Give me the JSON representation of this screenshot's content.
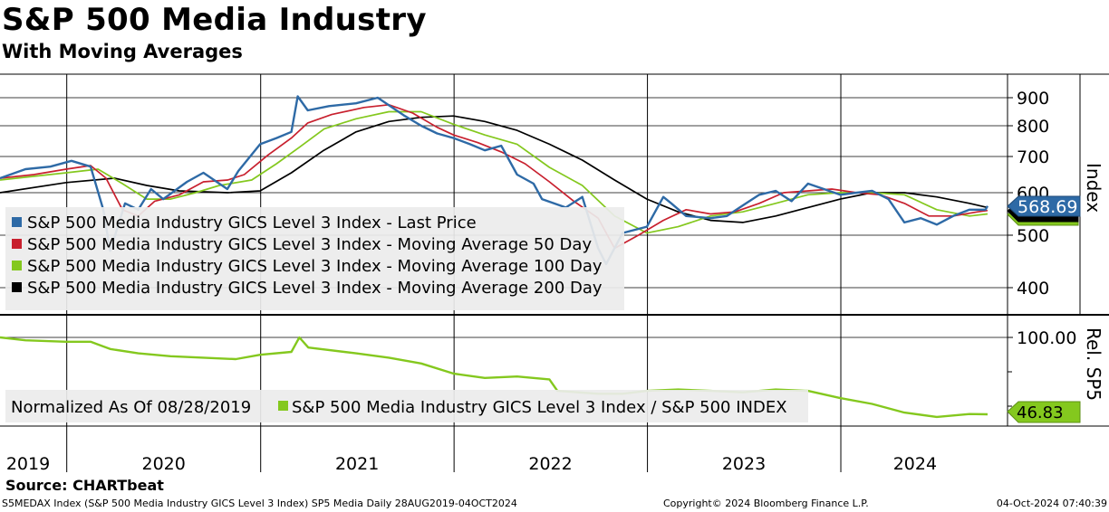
{
  "title": "S&P 500 Media Industry",
  "subtitle": "With Moving Averages",
  "source": "Source:  CHARTbeat",
  "footer": {
    "left": "S5MEDAX Index (S&P 500 Media Industry GICS Level 3 Index) SP5 Media  Daily 28AUG2019-04OCT2024",
    "center": "Copyright© 2024 Bloomberg Finance L.P.",
    "right": "04-Oct-2024 07:40:39"
  },
  "colors": {
    "last_price": "#2e6aa6",
    "ma50": "#c8202e",
    "ma100": "#84c81e",
    "ma200": "#000000",
    "relative": "#84c81e"
  },
  "chart_data": [
    {
      "type": "line",
      "panel": "upper",
      "axis_label": "Index",
      "y_ticks": [
        400,
        500,
        600,
        700,
        800,
        900
      ],
      "ylim": [
        360,
        940
      ],
      "x_labels": [
        "2019",
        "2020",
        "2021",
        "2022",
        "2023",
        "2024"
      ],
      "last_value_label": "568.69",
      "legend_placement": "bottom-left",
      "grid": true,
      "series": [
        {
          "name": "S&P 500 Media Industry GICS Level 3 Index - Last Price",
          "color": "#2e6aa6",
          "points": [
            [
              "2019-08-28",
              640
            ],
            [
              "2019-10-15",
              665
            ],
            [
              "2019-12-01",
              672
            ],
            [
              "2020-01-10",
              688
            ],
            [
              "2020-02-15",
              672
            ],
            [
              "2020-03-10",
              560
            ],
            [
              "2020-03-23",
              470
            ],
            [
              "2020-04-20",
              575
            ],
            [
              "2020-05-15",
              560
            ],
            [
              "2020-06-08",
              610
            ],
            [
              "2020-07-01",
              585
            ],
            [
              "2020-08-15",
              630
            ],
            [
              "2020-09-15",
              655
            ],
            [
              "2020-10-30",
              610
            ],
            [
              "2020-11-20",
              660
            ],
            [
              "2020-12-31",
              740
            ],
            [
              "2021-01-31",
              760
            ],
            [
              "2021-02-28",
              780
            ],
            [
              "2021-03-12",
              905
            ],
            [
              "2021-03-31",
              855
            ],
            [
              "2021-05-10",
              870
            ],
            [
              "2021-06-30",
              880
            ],
            [
              "2021-08-10",
              900
            ],
            [
              "2021-09-30",
              835
            ],
            [
              "2021-10-31",
              800
            ],
            [
              "2021-11-30",
              775
            ],
            [
              "2021-12-31",
              760
            ],
            [
              "2022-01-31",
              740
            ],
            [
              "2022-02-28",
              720
            ],
            [
              "2022-03-31",
              735
            ],
            [
              "2022-04-30",
              650
            ],
            [
              "2022-05-31",
              625
            ],
            [
              "2022-06-16",
              585
            ],
            [
              "2022-07-31",
              565
            ],
            [
              "2022-08-31",
              590
            ],
            [
              "2022-09-30",
              475
            ],
            [
              "2022-10-15",
              445
            ],
            [
              "2022-11-15",
              505
            ],
            [
              "2022-12-31",
              520
            ],
            [
              "2023-01-31",
              590
            ],
            [
              "2023-02-15",
              575
            ],
            [
              "2023-03-15",
              545
            ],
            [
              "2023-04-30",
              540
            ],
            [
              "2023-05-31",
              545
            ],
            [
              "2023-06-30",
              570
            ],
            [
              "2023-07-31",
              595
            ],
            [
              "2023-08-31",
              605
            ],
            [
              "2023-09-30",
              580
            ],
            [
              "2023-10-31",
              625
            ],
            [
              "2023-11-30",
              610
            ],
            [
              "2023-12-31",
              595
            ],
            [
              "2024-01-31",
              600
            ],
            [
              "2024-02-29",
              605
            ],
            [
              "2024-03-31",
              585
            ],
            [
              "2024-04-30",
              530
            ],
            [
              "2024-05-31",
              540
            ],
            [
              "2024-06-30",
              525
            ],
            [
              "2024-07-31",
              545
            ],
            [
              "2024-08-31",
              560
            ],
            [
              "2024-09-30",
              560
            ],
            [
              "2024-10-04",
              568.69
            ]
          ]
        },
        {
          "name": "S&P 500 Media Industry GICS Level 3 Index - Moving Average 50 Day",
          "color": "#c8202e",
          "points": [
            [
              "2019-08-28",
              640
            ],
            [
              "2019-10-31",
              650
            ],
            [
              "2019-12-31",
              665
            ],
            [
              "2020-02-15",
              675
            ],
            [
              "2020-03-15",
              640
            ],
            [
              "2020-04-15",
              560
            ],
            [
              "2020-05-15",
              545
            ],
            [
              "2020-06-15",
              580
            ],
            [
              "2020-08-01",
              595
            ],
            [
              "2020-09-15",
              630
            ],
            [
              "2020-10-31",
              635
            ],
            [
              "2020-12-01",
              650
            ],
            [
              "2021-01-15",
              705
            ],
            [
              "2021-02-28",
              760
            ],
            [
              "2021-03-31",
              810
            ],
            [
              "2021-05-15",
              840
            ],
            [
              "2021-07-15",
              865
            ],
            [
              "2021-08-31",
              875
            ],
            [
              "2021-10-15",
              845
            ],
            [
              "2021-11-30",
              795
            ],
            [
              "2021-12-31",
              770
            ],
            [
              "2022-02-15",
              745
            ],
            [
              "2022-03-31",
              715
            ],
            [
              "2022-05-15",
              680
            ],
            [
              "2022-06-30",
              630
            ],
            [
              "2022-08-15",
              580
            ],
            [
              "2022-09-30",
              540
            ],
            [
              "2022-10-31",
              475
            ],
            [
              "2022-12-15",
              500
            ],
            [
              "2023-01-31",
              535
            ],
            [
              "2023-03-15",
              560
            ],
            [
              "2023-04-30",
              550
            ],
            [
              "2023-06-15",
              555
            ],
            [
              "2023-07-31",
              575
            ],
            [
              "2023-09-15",
              600
            ],
            [
              "2023-10-31",
              605
            ],
            [
              "2023-12-15",
              610
            ],
            [
              "2024-01-31",
              600
            ],
            [
              "2024-03-15",
              595
            ],
            [
              "2024-04-30",
              575
            ],
            [
              "2024-06-15",
              545
            ],
            [
              "2024-07-31",
              545
            ],
            [
              "2024-09-15",
              555
            ],
            [
              "2024-10-04",
              558
            ]
          ]
        },
        {
          "name": "S&P 500 Media Industry GICS Level 3 Index - Moving Average 100 Day",
          "color": "#84c81e",
          "points": [
            [
              "2019-08-28",
              635
            ],
            [
              "2019-12-31",
              655
            ],
            [
              "2020-02-29",
              665
            ],
            [
              "2020-04-15",
              625
            ],
            [
              "2020-05-31",
              585
            ],
            [
              "2020-07-15",
              585
            ],
            [
              "2020-08-31",
              600
            ],
            [
              "2020-10-15",
              620
            ],
            [
              "2020-12-15",
              635
            ],
            [
              "2021-01-31",
              680
            ],
            [
              "2021-03-15",
              730
            ],
            [
              "2021-05-01",
              790
            ],
            [
              "2021-06-30",
              825
            ],
            [
              "2021-08-31",
              850
            ],
            [
              "2021-10-31",
              850
            ],
            [
              "2021-12-31",
              805
            ],
            [
              "2022-02-28",
              770
            ],
            [
              "2022-04-30",
              740
            ],
            [
              "2022-06-30",
              670
            ],
            [
              "2022-08-31",
              620
            ],
            [
              "2022-10-31",
              545
            ],
            [
              "2022-12-31",
              505
            ],
            [
              "2023-02-28",
              520
            ],
            [
              "2023-04-30",
              545
            ],
            [
              "2023-06-30",
              555
            ],
            [
              "2023-08-31",
              575
            ],
            [
              "2023-10-31",
              595
            ],
            [
              "2023-12-31",
              600
            ],
            [
              "2024-02-29",
              600
            ],
            [
              "2024-04-30",
              595
            ],
            [
              "2024-06-30",
              560
            ],
            [
              "2024-08-31",
              545
            ],
            [
              "2024-10-04",
              550
            ]
          ]
        },
        {
          "name": "S&P 500 Media Industry GICS Level 3 Index - Moving Average 200 Day",
          "color": "#000000",
          "points": [
            [
              "2019-08-28",
              600
            ],
            [
              "2019-12-31",
              628
            ],
            [
              "2020-03-31",
              640
            ],
            [
              "2020-05-31",
              620
            ],
            [
              "2020-07-31",
              605
            ],
            [
              "2020-10-31",
              600
            ],
            [
              "2020-12-31",
              605
            ],
            [
              "2021-02-28",
              655
            ],
            [
              "2021-04-30",
              720
            ],
            [
              "2021-06-30",
              780
            ],
            [
              "2021-08-31",
              815
            ],
            [
              "2021-10-31",
              830
            ],
            [
              "2021-12-31",
              835
            ],
            [
              "2022-02-28",
              815
            ],
            [
              "2022-04-30",
              785
            ],
            [
              "2022-06-30",
              740
            ],
            [
              "2022-08-31",
              690
            ],
            [
              "2022-10-31",
              635
            ],
            [
              "2022-12-31",
              585
            ],
            [
              "2023-02-28",
              555
            ],
            [
              "2023-04-30",
              535
            ],
            [
              "2023-06-30",
              530
            ],
            [
              "2023-08-31",
              545
            ],
            [
              "2023-10-31",
              565
            ],
            [
              "2023-12-31",
              585
            ],
            [
              "2024-02-29",
              600
            ],
            [
              "2024-04-30",
              600
            ],
            [
              "2024-06-30",
              590
            ],
            [
              "2024-08-31",
              575
            ],
            [
              "2024-10-04",
              565
            ]
          ]
        }
      ]
    },
    {
      "type": "line",
      "panel": "lower",
      "axis_label": "Rel. SP5",
      "y_ticks": [
        100
      ],
      "y_tick_labels": [
        "100.00"
      ],
      "ylim": [
        36,
        106
      ],
      "last_value_label": "46.83",
      "legend_note": "Normalized As Of 08/28/2019",
      "series": [
        {
          "name": "S&P 500 Media Industry GICS Level 3 Index / S&P 500 INDEX",
          "color": "#84c81e",
          "points": [
            [
              "2019-08-28",
              100
            ],
            [
              "2019-10-15",
              98
            ],
            [
              "2019-12-31",
              97
            ],
            [
              "2020-02-15",
              97
            ],
            [
              "2020-03-23",
              92
            ],
            [
              "2020-05-15",
              89
            ],
            [
              "2020-07-15",
              87
            ],
            [
              "2020-09-15",
              86
            ],
            [
              "2020-11-15",
              85
            ],
            [
              "2020-12-31",
              88
            ],
            [
              "2021-02-28",
              90
            ],
            [
              "2021-03-15",
              100
            ],
            [
              "2021-04-01",
              93
            ],
            [
              "2021-06-30",
              89
            ],
            [
              "2021-08-31",
              86
            ],
            [
              "2021-10-31",
              82
            ],
            [
              "2021-12-31",
              75
            ],
            [
              "2022-02-28",
              72
            ],
            [
              "2022-04-30",
              73
            ],
            [
              "2022-06-30",
              71
            ],
            [
              "2022-07-15",
              63
            ],
            [
              "2022-09-30",
              61
            ],
            [
              "2022-11-15",
              61
            ],
            [
              "2022-12-31",
              63
            ],
            [
              "2023-02-28",
              64
            ],
            [
              "2023-04-30",
              63
            ],
            [
              "2023-06-30",
              62
            ],
            [
              "2023-08-31",
              64
            ],
            [
              "2023-10-31",
              63
            ],
            [
              "2023-12-31",
              58
            ],
            [
              "2024-02-29",
              54
            ],
            [
              "2024-04-30",
              48
            ],
            [
              "2024-06-30",
              45
            ],
            [
              "2024-08-31",
              47
            ],
            [
              "2024-10-04",
              46.83
            ]
          ]
        }
      ]
    }
  ]
}
